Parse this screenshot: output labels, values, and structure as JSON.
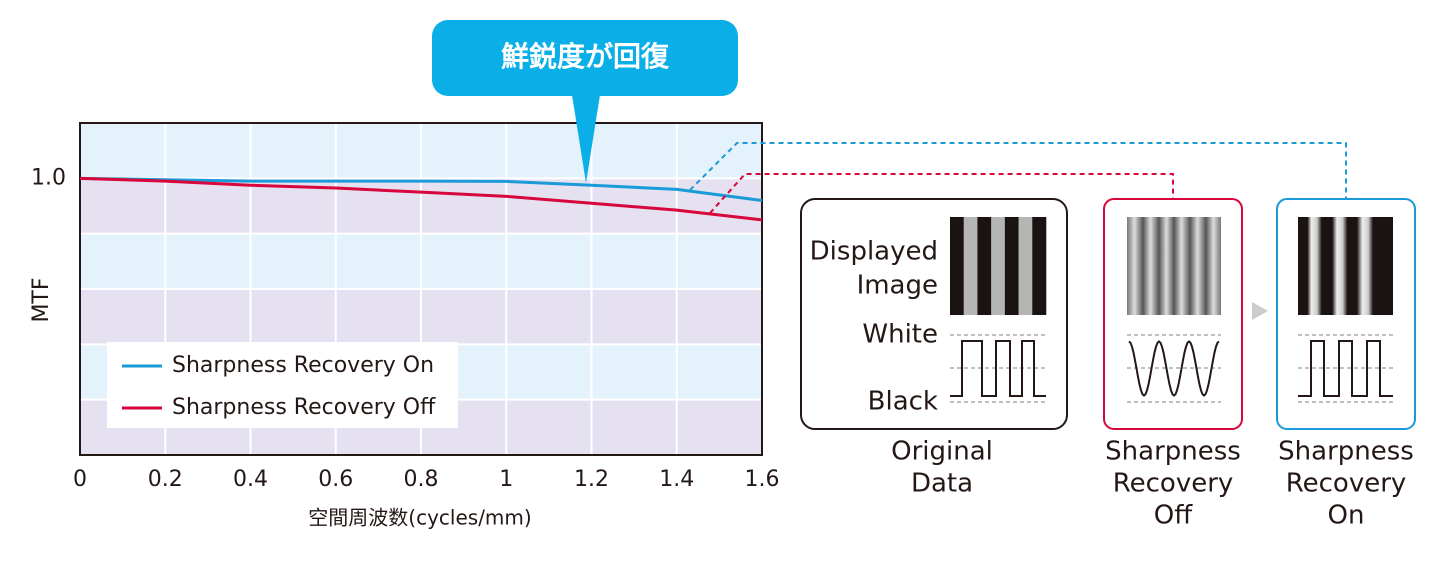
{
  "chart_data": {
    "type": "line",
    "annotation": "鮮鋭度が回復",
    "ylabel": "MTF",
    "xlabel": "空間周波数(cycles/mm)",
    "x": [
      0,
      0.2,
      0.4,
      0.6,
      0.8,
      1,
      1.2,
      1.4,
      1.6
    ],
    "series": [
      {
        "name": "Sharpness Recovery On",
        "color": "#1a9ad6",
        "values": [
          1.0,
          0.995,
          0.99,
          0.99,
          0.99,
          0.989,
          0.975,
          0.96,
          0.92
        ]
      },
      {
        "name": "Sharpness Recovery Off",
        "color": "#d7063b",
        "values": [
          1.0,
          0.99,
          0.975,
          0.965,
          0.95,
          0.935,
          0.91,
          0.885,
          0.85
        ]
      }
    ],
    "xlim": [
      0,
      1.6
    ],
    "xticks": [
      0,
      0.2,
      0.4,
      0.6,
      0.8,
      1,
      1.2,
      1.4,
      1.6
    ],
    "ylim": [
      0,
      1.2
    ],
    "yticks": [
      {
        "value": 1,
        "label": "1.0"
      }
    ],
    "ygrid": [
      0.2,
      0.4,
      0.6,
      0.8,
      1
    ],
    "band_colors": [
      "#e4f2fb",
      "#e5e1f0"
    ],
    "grid": true,
    "legend": "lower left"
  },
  "diagram": {
    "original": {
      "displayed_image": [
        "Displayed",
        "Image"
      ],
      "white": "White",
      "black": "Black",
      "caption": [
        "Original",
        "Data"
      ]
    },
    "off_caption": [
      "Sharpness",
      "Recovery",
      "Off"
    ],
    "on_caption": [
      "Sharpness",
      "Recovery",
      "On"
    ]
  }
}
